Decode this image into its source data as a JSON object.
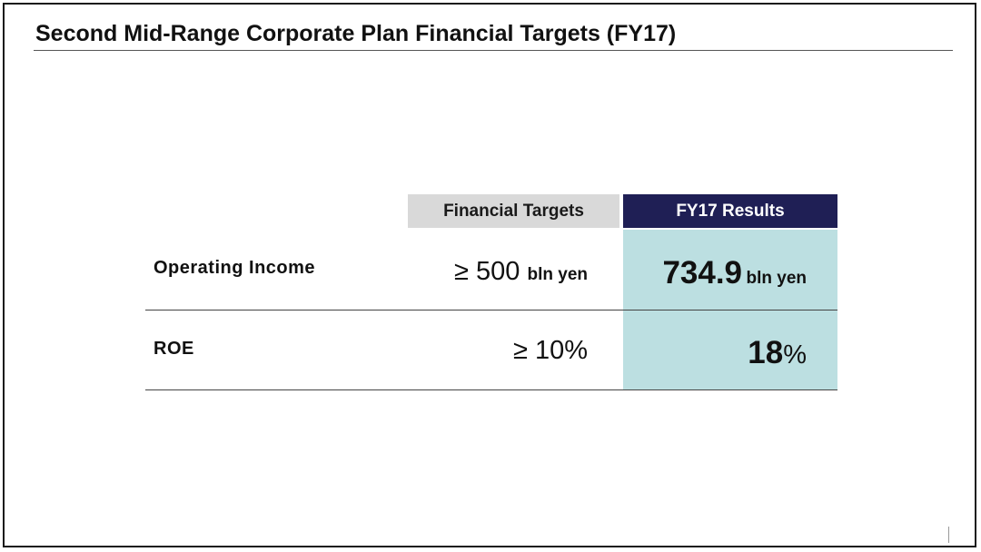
{
  "title": "Second Mid-Range Corporate Plan Financial Targets (FY17)",
  "table": {
    "headers": {
      "targets": "Financial Targets",
      "results": "FY17 Results"
    },
    "rows": [
      {
        "label": "Operating Income",
        "target_symbol": "≥",
        "target_value": "500",
        "target_unit": "bln yen",
        "result_value": "734.9",
        "result_unit": "bln yen"
      },
      {
        "label": "ROE",
        "target_symbol": "≥",
        "target_value": "10%",
        "target_unit": "",
        "result_value": "18",
        "result_unit": "%"
      }
    ]
  },
  "colors": {
    "header_targets_bg": "#d9d9d9",
    "header_results_bg": "#1f1f55",
    "results_highlight": "#bcdfe1"
  }
}
